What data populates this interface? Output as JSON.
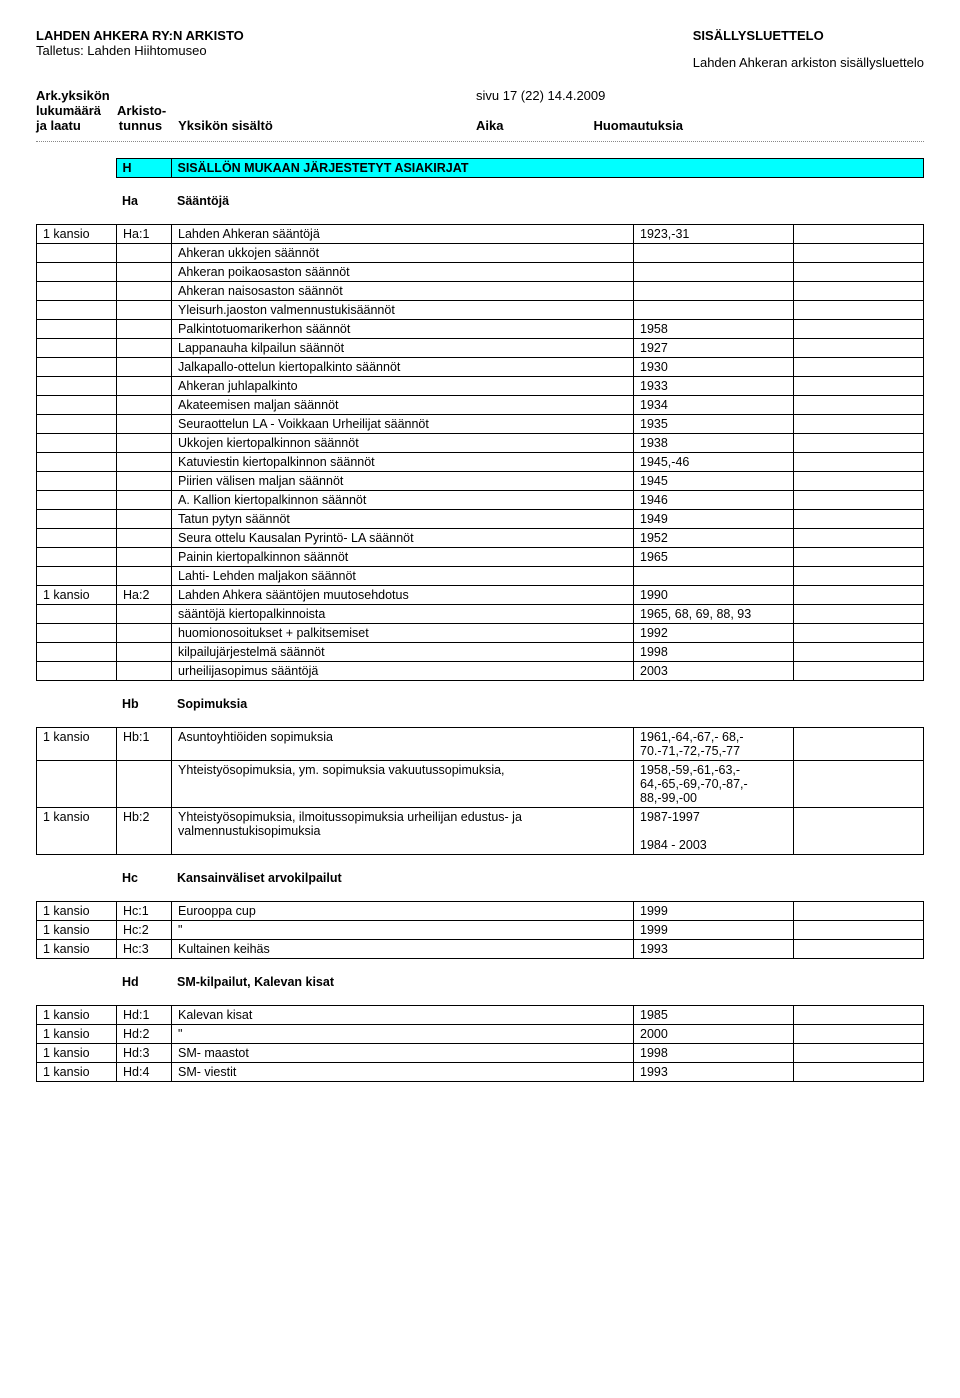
{
  "header": {
    "left_title": "LAHDEN AHKERA RY:N ARKISTO",
    "left_sub": "Talletus: Lahden Hiihtomuseo",
    "right_title": "SISÄLLYSLUETTELO",
    "right_sub": "Lahden Ahkeran arkiston sisällysluettelo"
  },
  "meta": {
    "ark": "Ark.yksikön",
    "luku": "lukumäärä",
    "jalaatu": "ja laatu",
    "arkisto": "Arkisto-",
    "tunnus": "tunnus",
    "yksikon": "Yksikön sisältö",
    "sivu": "sivu 17 (22)  14.4.2009",
    "aika": "Aika",
    "huom": "Huomautuksia"
  },
  "section": {
    "code": "H",
    "title": "SISÄLLÖN MUKAAN JÄRJESTETYT ASIAKIRJAT"
  },
  "subsections": {
    "ha": {
      "code": "Ha",
      "label": "Sääntöjä"
    },
    "hb": {
      "code": "Hb",
      "label": "Sopimuksia"
    },
    "hc": {
      "code": "Hc",
      "label": "Kansainväliset arvokilpailut"
    },
    "hd": {
      "code": "Hd",
      "label": "SM-kilpailut, Kalevan kisat"
    }
  },
  "ha_rows": [
    {
      "qty": "1 kansio",
      "code": "Ha:1",
      "desc": "Lahden Ahkeran sääntöjä",
      "year": "1923,-31"
    },
    {
      "qty": "",
      "code": "",
      "desc": "Ahkeran ukkojen säännöt",
      "year": ""
    },
    {
      "qty": "",
      "code": "",
      "desc": "Ahkeran poikaosaston säännöt",
      "year": ""
    },
    {
      "qty": "",
      "code": "",
      "desc": "Ahkeran naisosaston säännöt",
      "year": ""
    },
    {
      "qty": "",
      "code": "",
      "desc": "Yleisurh.jaoston valmennustukisäännöt",
      "year": ""
    },
    {
      "qty": "",
      "code": "",
      "desc": "Palkintotuomarikerhon säännöt",
      "year": "1958"
    },
    {
      "qty": "",
      "code": "",
      "desc": "Lappanauha kilpailun säännöt",
      "year": "1927"
    },
    {
      "qty": "",
      "code": "",
      "desc": "Jalkapallo-ottelun kiertopalkinto säännöt",
      "year": "1930"
    },
    {
      "qty": "",
      "code": "",
      "desc": "Ahkeran juhlapalkinto",
      "year": "1933"
    },
    {
      "qty": "",
      "code": "",
      "desc": "Akateemisen maljan säännöt",
      "year": "1934"
    },
    {
      "qty": "",
      "code": "",
      "desc": "Seuraottelun LA - Voikkaan Urheilijat säännöt",
      "year": "1935"
    },
    {
      "qty": "",
      "code": "",
      "desc": "Ukkojen kiertopalkinnon säännöt",
      "year": "1938"
    },
    {
      "qty": "",
      "code": "",
      "desc": "Katuviestin kiertopalkinnon säännöt",
      "year": "1945,-46"
    },
    {
      "qty": "",
      "code": "",
      "desc": "Piirien välisen maljan säännöt",
      "year": "1945"
    },
    {
      "qty": "",
      "code": "",
      "desc": "A. Kallion kiertopalkinnon säännöt",
      "year": "1946"
    },
    {
      "qty": "",
      "code": "",
      "desc": "Tatun pytyn säännöt",
      "year": "1949"
    },
    {
      "qty": "",
      "code": "",
      "desc": "Seura ottelu Kausalan Pyrintö- LA säännöt",
      "year": "1952"
    },
    {
      "qty": "",
      "code": "",
      "desc": "Painin kiertopalkinnon säännöt",
      "year": "1965"
    },
    {
      "qty": "",
      "code": "",
      "desc": "Lahti- Lehden maljakon säännöt",
      "year": ""
    },
    {
      "qty": "1 kansio",
      "code": "Ha:2",
      "desc": "Lahden Ahkera sääntöjen muutosehdotus",
      "year": "1990"
    },
    {
      "qty": "",
      "code": "",
      "desc": "sääntöjä kiertopalkinnoista",
      "year": "1965, 68, 69, 88, 93"
    },
    {
      "qty": "",
      "code": "",
      "desc": "huomionosoitukset + palkitsemiset",
      "year": "1992"
    },
    {
      "qty": "",
      "code": "",
      "desc": "kilpailujärjestelmä säännöt",
      "year": "1998"
    },
    {
      "qty": "",
      "code": "",
      "desc": "urheilijasopimus sääntöjä",
      "year": "2003"
    }
  ],
  "hb_rows": [
    {
      "qty": "1 kansio",
      "code": "Hb:1",
      "desc": "Asuntoyhtiöiden sopimuksia",
      "year": "1961,-64,-67,- 68,- 70.-71,-72,-75,-77"
    },
    {
      "qty": "",
      "code": "",
      "desc": "Yhteistyösopimuksia, ym. sopimuksia vakuutussopimuksia,",
      "year": "1958,-59,-61,-63,- 64,-65,-69,-70,-87,- 88,-99,-00"
    },
    {
      "qty": "1 kansio",
      "code": "Hb:2",
      "desc": "Yhteistyösopimuksia, ilmoitussopimuksia urheilijan edustus- ja valmennustukisopimuksia",
      "year": "1987-1997\n\n1984 - 2003"
    }
  ],
  "hc_rows": [
    {
      "qty": "1 kansio",
      "code": "Hc:1",
      "desc": "Eurooppa cup",
      "year": "1999"
    },
    {
      "qty": "1 kansio",
      "code": "Hc:2",
      "desc": "\"",
      "year": "1999"
    },
    {
      "qty": "1 kansio",
      "code": "Hc:3",
      "desc": "Kultainen keihäs",
      "year": "1993"
    }
  ],
  "hd_rows": [
    {
      "qty": "1 kansio",
      "code": "Hd:1",
      "desc": "Kalevan kisat",
      "year": "1985"
    },
    {
      "qty": "1 kansio",
      "code": "Hd:2",
      "desc": "\"",
      "year": "2000"
    },
    {
      "qty": "1 kansio",
      "code": "Hd:3",
      "desc": "SM- maastot",
      "year": "1998"
    },
    {
      "qty": "1 kansio",
      "code": "Hd:4",
      "desc": "SM- viestit",
      "year": "1993"
    }
  ]
}
